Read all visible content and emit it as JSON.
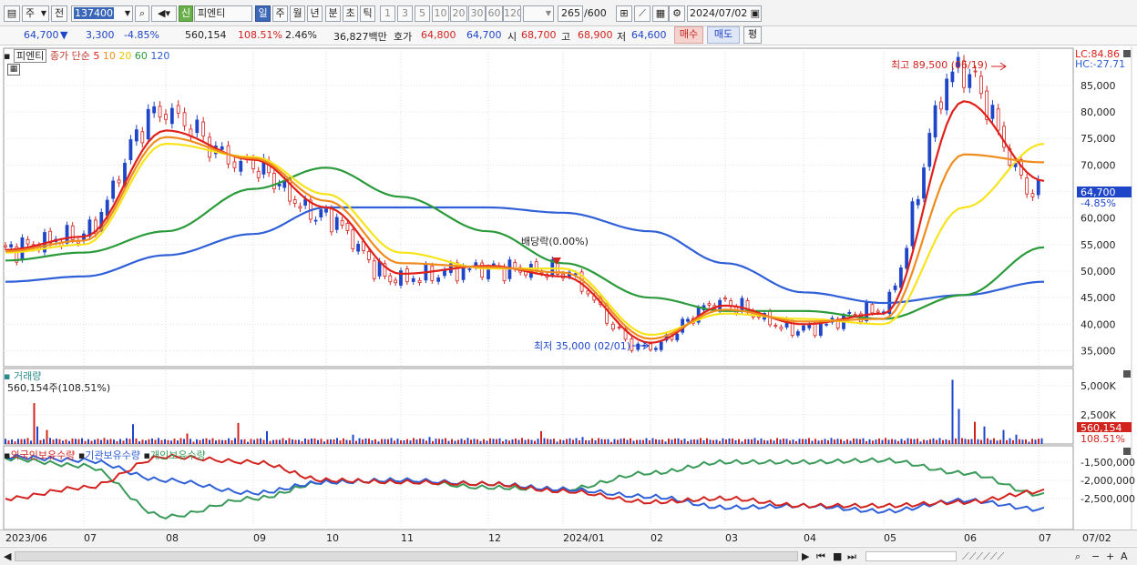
{
  "toolbar1": {
    "market_sel": "주",
    "period_sel": "전",
    "code": "137400",
    "credit": "신",
    "name": "피엔티",
    "periods": [
      "일",
      "주",
      "월",
      "년",
      "분",
      "초",
      "틱"
    ],
    "active_period": "일",
    "intervals": [
      "1",
      "3",
      "5",
      "10",
      "20",
      "30",
      "60",
      "120"
    ],
    "count": "265",
    "count_max": "/600",
    "date": "2024/07/02"
  },
  "quote": {
    "price": "64,700",
    "arrow": "▼",
    "change": "3,300",
    "change_pct": "-4.85%",
    "volume": "560,154",
    "vol_ratio": "108.51%",
    "turnover": "2.46%",
    "amount": "36,827백만",
    "ask_label": "호가",
    "ask": "64,800",
    "bid": "64,700",
    "open_label": "시",
    "open": "68,700",
    "high_label": "고",
    "high": "68,900",
    "low_label": "저",
    "low": "64,600",
    "buy_btn": "매수",
    "sell_btn": "매도",
    "eval_btn": "평"
  },
  "price_pane": {
    "name": "피엔티",
    "legend_prefix": "종가 단순",
    "legend_periods": [
      "5",
      "10",
      "20",
      "60",
      "120"
    ],
    "lc": "LC:84.86",
    "hc": "HC:-27.71",
    "high_note": "최고 89,500 (06/19)",
    "low_note": "최저 35,000 (02/01)",
    "dividend_note": "배당락(0.00%)",
    "price_tag": "64,700",
    "pct_tag": "-4.85%",
    "y_labels": [
      "85,000",
      "80,000",
      "75,000",
      "70,000",
      "65,000",
      "60,000",
      "55,000",
      "50,000",
      "45,000",
      "40,000",
      "35,000"
    ]
  },
  "volume_pane": {
    "title": "거래량",
    "value": "560,154주(108.51%)",
    "y_labels": [
      "5,000K",
      "2,500K",
      "0"
    ],
    "tag": "560,154",
    "tag_pct": "108.51%"
  },
  "holdings_pane": {
    "titles": [
      "외국인보유수량",
      "기관보유수량",
      "개인보유수량"
    ],
    "y_labels": [
      "-1,500,000",
      "-2,000,000",
      "-2,500,000"
    ]
  },
  "x_axis": [
    "2023/06",
    "07",
    "08",
    "09",
    "10",
    "11",
    "12",
    "2024/01",
    "02",
    "03",
    "04",
    "05",
    "06",
    "07",
    "07/02"
  ],
  "colors": {
    "ma5": "#e0201b",
    "ma10": "#f08c1e",
    "ma20": "#f7e41c",
    "ma60": "#2a9a3a",
    "ma120": "#3060d8",
    "up": "#d2231f",
    "down": "#1f45c8",
    "foreign": "#d2231f",
    "inst": "#3060d8",
    "indiv": "#3a9a5a"
  },
  "chart_data": {
    "type": "line",
    "series": [
      {
        "name": "5",
        "x": [
          "2023/06",
          "07",
          "08",
          "09",
          "10",
          "11",
          "12",
          "2024/01",
          "02",
          "03",
          "04",
          "05",
          "06",
          "07"
        ],
        "values": [
          54000,
          56500,
          76500,
          71000,
          62000,
          49500,
          51000,
          49000,
          36500,
          43500,
          40000,
          42000,
          82000,
          67000
        ]
      },
      {
        "name": "20",
        "x": [
          "2023/06",
          "07",
          "08",
          "09",
          "10",
          "11",
          "12",
          "2024/01",
          "02",
          "03",
          "04",
          "05",
          "06",
          "07"
        ],
        "values": [
          53500,
          55000,
          74000,
          71500,
          64500,
          53500,
          50500,
          50500,
          38000,
          42000,
          41000,
          40000,
          62000,
          74000
        ]
      },
      {
        "name": "60",
        "x": [
          "2023/06",
          "07",
          "08",
          "09",
          "10",
          "11",
          "12",
          "2024/01",
          "02",
          "03",
          "04",
          "05",
          "06",
          "07"
        ],
        "values": [
          52000,
          53500,
          57500,
          65500,
          69500,
          64000,
          57500,
          51500,
          45000,
          42500,
          42500,
          41000,
          45500,
          54500
        ]
      },
      {
        "name": "120",
        "x": [
          "2023/06",
          "07",
          "08",
          "09",
          "10",
          "11",
          "12",
          "2024/01",
          "02",
          "03",
          "04",
          "05",
          "06",
          "07"
        ],
        "values": [
          48000,
          49000,
          53000,
          57000,
          62000,
          62000,
          62000,
          61000,
          57500,
          51500,
          46000,
          44000,
          45500,
          48000
        ]
      }
    ],
    "ylim": [
      32000,
      92000
    ]
  }
}
